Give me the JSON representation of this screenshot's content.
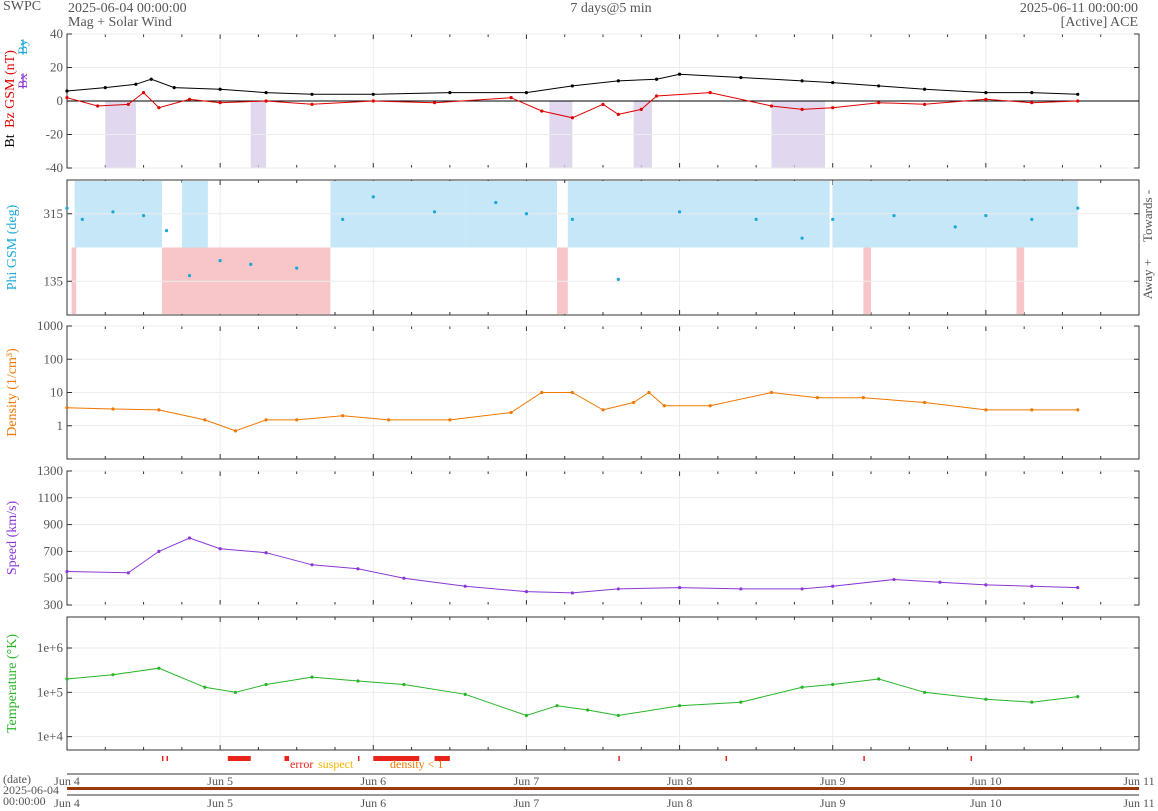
{
  "header": {
    "brand": "SWPC",
    "start": "2025-06-04 00:00:00",
    "subtitle": "Mag + Solar Wind",
    "span": "7 days@5 min",
    "end": "2025-06-11 00:00:00",
    "source": "[Active] ACE"
  },
  "footer": {
    "date_label": "(date)",
    "start_date": "2025-06-04",
    "start_time": "00:00:00",
    "legend": [
      {
        "label": "error",
        "color": "#e8231a"
      },
      {
        "label": "suspect",
        "color": "#f0b400"
      },
      {
        "label": "density < 1",
        "color": "#f07800"
      }
    ]
  },
  "chart_data": [
    {
      "type": "line",
      "panel": "mag",
      "ylabel_parts": [
        "Bt",
        "Bz GSM (nT)"
      ],
      "legend_glyphs": [
        "Bx",
        "By"
      ],
      "ylim": [
        -40,
        40
      ],
      "yticks": [
        -40,
        -20,
        0,
        20,
        40
      ],
      "x_start": "2025-06-04",
      "x_end": "2025-06-11",
      "xtick_labels": [
        "Jun 4",
        "Jun 5",
        "Jun 6",
        "Jun 7",
        "Jun 8",
        "Jun 9",
        "Jun 10",
        "Jun 11"
      ],
      "series": [
        {
          "name": "Bt",
          "color": "#000000",
          "x": [
            0,
            0.25,
            0.45,
            0.55,
            0.7,
            1.0,
            1.3,
            1.6,
            2.0,
            2.5,
            3.0,
            3.3,
            3.6,
            3.85,
            4.0,
            4.4,
            4.8,
            5.0,
            5.3,
            5.6,
            6.0,
            6.3,
            6.6
          ],
          "y": [
            6,
            8,
            10,
            13,
            8,
            7,
            5,
            4,
            4,
            5,
            5,
            9,
            12,
            13,
            16,
            14,
            12,
            11,
            9,
            7,
            5,
            5,
            4
          ]
        },
        {
          "name": "Bz GSM",
          "color": "#e00000",
          "x": [
            0,
            0.2,
            0.4,
            0.5,
            0.6,
            0.8,
            1.0,
            1.3,
            1.6,
            2.0,
            2.4,
            2.9,
            3.1,
            3.3,
            3.5,
            3.6,
            3.75,
            3.85,
            4.2,
            4.6,
            4.8,
            5.0,
            5.3,
            5.6,
            6.0,
            6.3,
            6.6
          ],
          "y": [
            2,
            -3,
            -2,
            5,
            -4,
            1,
            -1,
            0,
            -2,
            0,
            -1,
            2,
            -6,
            -10,
            -2,
            -8,
            -5,
            3,
            5,
            -3,
            -5,
            -4,
            -1,
            -2,
            1,
            -1,
            0
          ]
        }
      ],
      "negative_bz_shading": [
        [
          0.25,
          0.45
        ],
        [
          1.2,
          1.3
        ],
        [
          3.15,
          3.3
        ],
        [
          3.7,
          3.82
        ],
        [
          4.6,
          4.95
        ]
      ]
    },
    {
      "type": "scatter",
      "panel": "phi",
      "ylabel": "Phi GSM (deg)",
      "yticks": [
        135,
        315
      ],
      "ylim": [
        45,
        405
      ],
      "right_labels": [
        "Towards -",
        "Away +"
      ],
      "series": [
        {
          "name": "Phi",
          "color": "#19a7d8",
          "x": [
            0,
            0.1,
            0.3,
            0.5,
            0.65,
            0.8,
            1.0,
            1.2,
            1.5,
            1.8,
            2.0,
            2.4,
            2.8,
            3.0,
            3.3,
            3.6,
            4.0,
            4.5,
            4.8,
            5.0,
            5.4,
            5.8,
            6.0,
            6.3,
            6.6
          ],
          "y": [
            330,
            300,
            320,
            310,
            270,
            150,
            190,
            180,
            170,
            300,
            360,
            320,
            345,
            315,
            300,
            140,
            320,
            300,
            250,
            300,
            310,
            280,
            310,
            300,
            330
          ]
        }
      ],
      "towards_spans": [
        [
          0.05,
          0.62
        ],
        [
          0.75,
          0.92
        ],
        [
          1.72,
          2.6
        ],
        [
          2.6,
          3.2
        ],
        [
          3.27,
          4.98
        ],
        [
          5.0,
          6.6
        ]
      ],
      "away_spans": [
        [
          0.62,
          1.72
        ],
        [
          3.2,
          3.27
        ],
        [
          0.03,
          0.06
        ],
        [
          5.2,
          5.25
        ],
        [
          6.2,
          6.25
        ]
      ]
    },
    {
      "type": "line",
      "panel": "density",
      "ylabel": "Density (1/cm³)",
      "log": true,
      "ylim": [
        0.1,
        1000
      ],
      "ytick_labels": [
        "1",
        "10",
        "100",
        "1000"
      ],
      "series": [
        {
          "name": "Density",
          "color": "#f07800",
          "x": [
            0,
            0.3,
            0.6,
            0.9,
            1.1,
            1.3,
            1.5,
            1.8,
            2.1,
            2.5,
            2.9,
            3.1,
            3.3,
            3.5,
            3.7,
            3.8,
            3.9,
            4.2,
            4.6,
            4.9,
            5.2,
            5.6,
            6.0,
            6.3,
            6.6
          ],
          "y": [
            3.5,
            3.2,
            3.0,
            1.5,
            0.7,
            1.5,
            1.5,
            2.0,
            1.5,
            1.5,
            2.5,
            10,
            10,
            3,
            5,
            10,
            4,
            4,
            10,
            7,
            7,
            5,
            3,
            3,
            3
          ]
        }
      ]
    },
    {
      "type": "line",
      "panel": "speed",
      "ylabel": "Speed (km/s)",
      "ylim": [
        300,
        1300
      ],
      "yticks": [
        300,
        500,
        700,
        900,
        1100,
        1300
      ],
      "series": [
        {
          "name": "Speed",
          "color": "#8b36d6",
          "x": [
            0,
            0.4,
            0.6,
            0.8,
            1.0,
            1.3,
            1.6,
            1.9,
            2.2,
            2.6,
            3.0,
            3.3,
            3.6,
            4.0,
            4.4,
            4.8,
            5.0,
            5.4,
            5.7,
            6.0,
            6.3,
            6.6
          ],
          "y": [
            550,
            540,
            700,
            800,
            720,
            690,
            600,
            570,
            500,
            440,
            400,
            390,
            420,
            430,
            420,
            420,
            440,
            490,
            470,
            450,
            440,
            430
          ]
        }
      ]
    },
    {
      "type": "line",
      "panel": "temperature",
      "ylabel": "Temperature (°K)",
      "log": true,
      "ylim": [
        5000,
        5000000
      ],
      "ytick_labels": [
        "1e+4",
        "1e+5",
        "1e+6"
      ],
      "series": [
        {
          "name": "Temperature",
          "color": "#26b526",
          "x": [
            0,
            0.3,
            0.6,
            0.9,
            1.1,
            1.3,
            1.6,
            1.9,
            2.2,
            2.6,
            3.0,
            3.2,
            3.4,
            3.6,
            4.0,
            4.4,
            4.8,
            5.0,
            5.3,
            5.6,
            6.0,
            6.3,
            6.6
          ],
          "y": [
            200000,
            250000,
            350000,
            130000,
            100000,
            150000,
            220000,
            180000,
            150000,
            90000,
            30000,
            50000,
            40000,
            30000,
            50000,
            60000,
            130000,
            150000,
            200000,
            100000,
            70000,
            60000,
            80000
          ]
        }
      ]
    }
  ]
}
